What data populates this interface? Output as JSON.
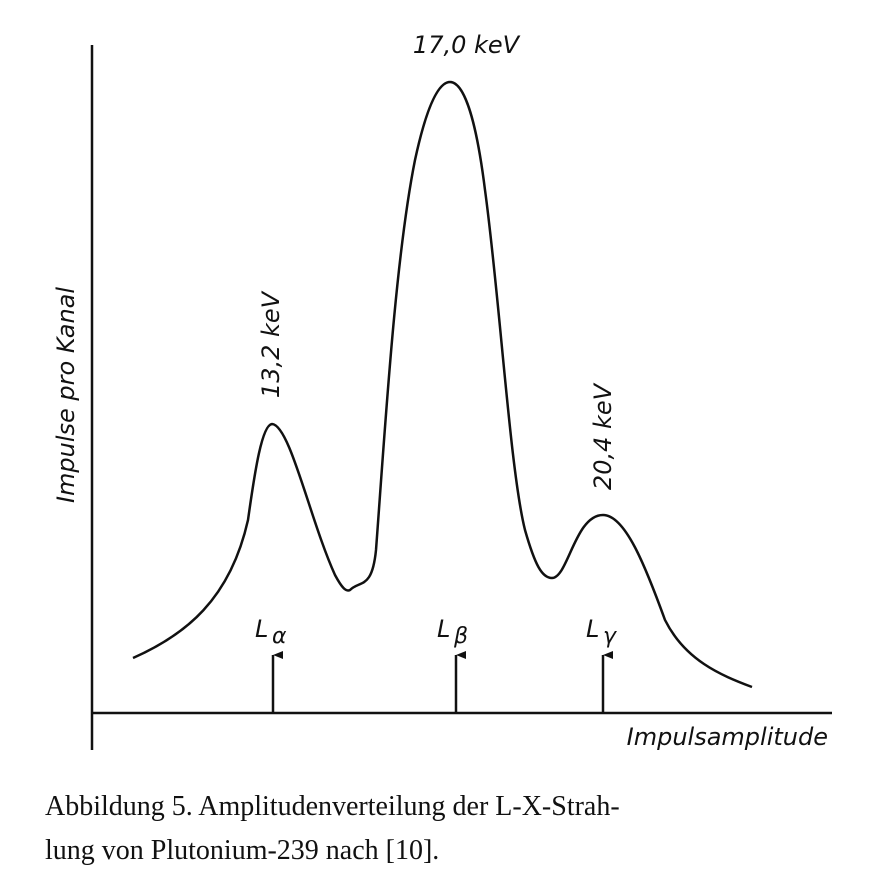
{
  "figure": {
    "y_axis_label": "Impulse pro Kanal",
    "x_axis_label": "Impulsamplitude",
    "peaks": [
      {
        "energy": "13,2 keV",
        "line": "L",
        "subscript": "α"
      },
      {
        "energy": "17,0 keV",
        "line": "L",
        "subscript": "β"
      },
      {
        "energy": "20,4 keV",
        "line": "L",
        "subscript": "γ"
      }
    ]
  },
  "caption": [
    "Abbildung 5. Amplitudenverteilung der L-X-Strah-",
    "lung von Plutonium-239 nach [10]."
  ]
}
